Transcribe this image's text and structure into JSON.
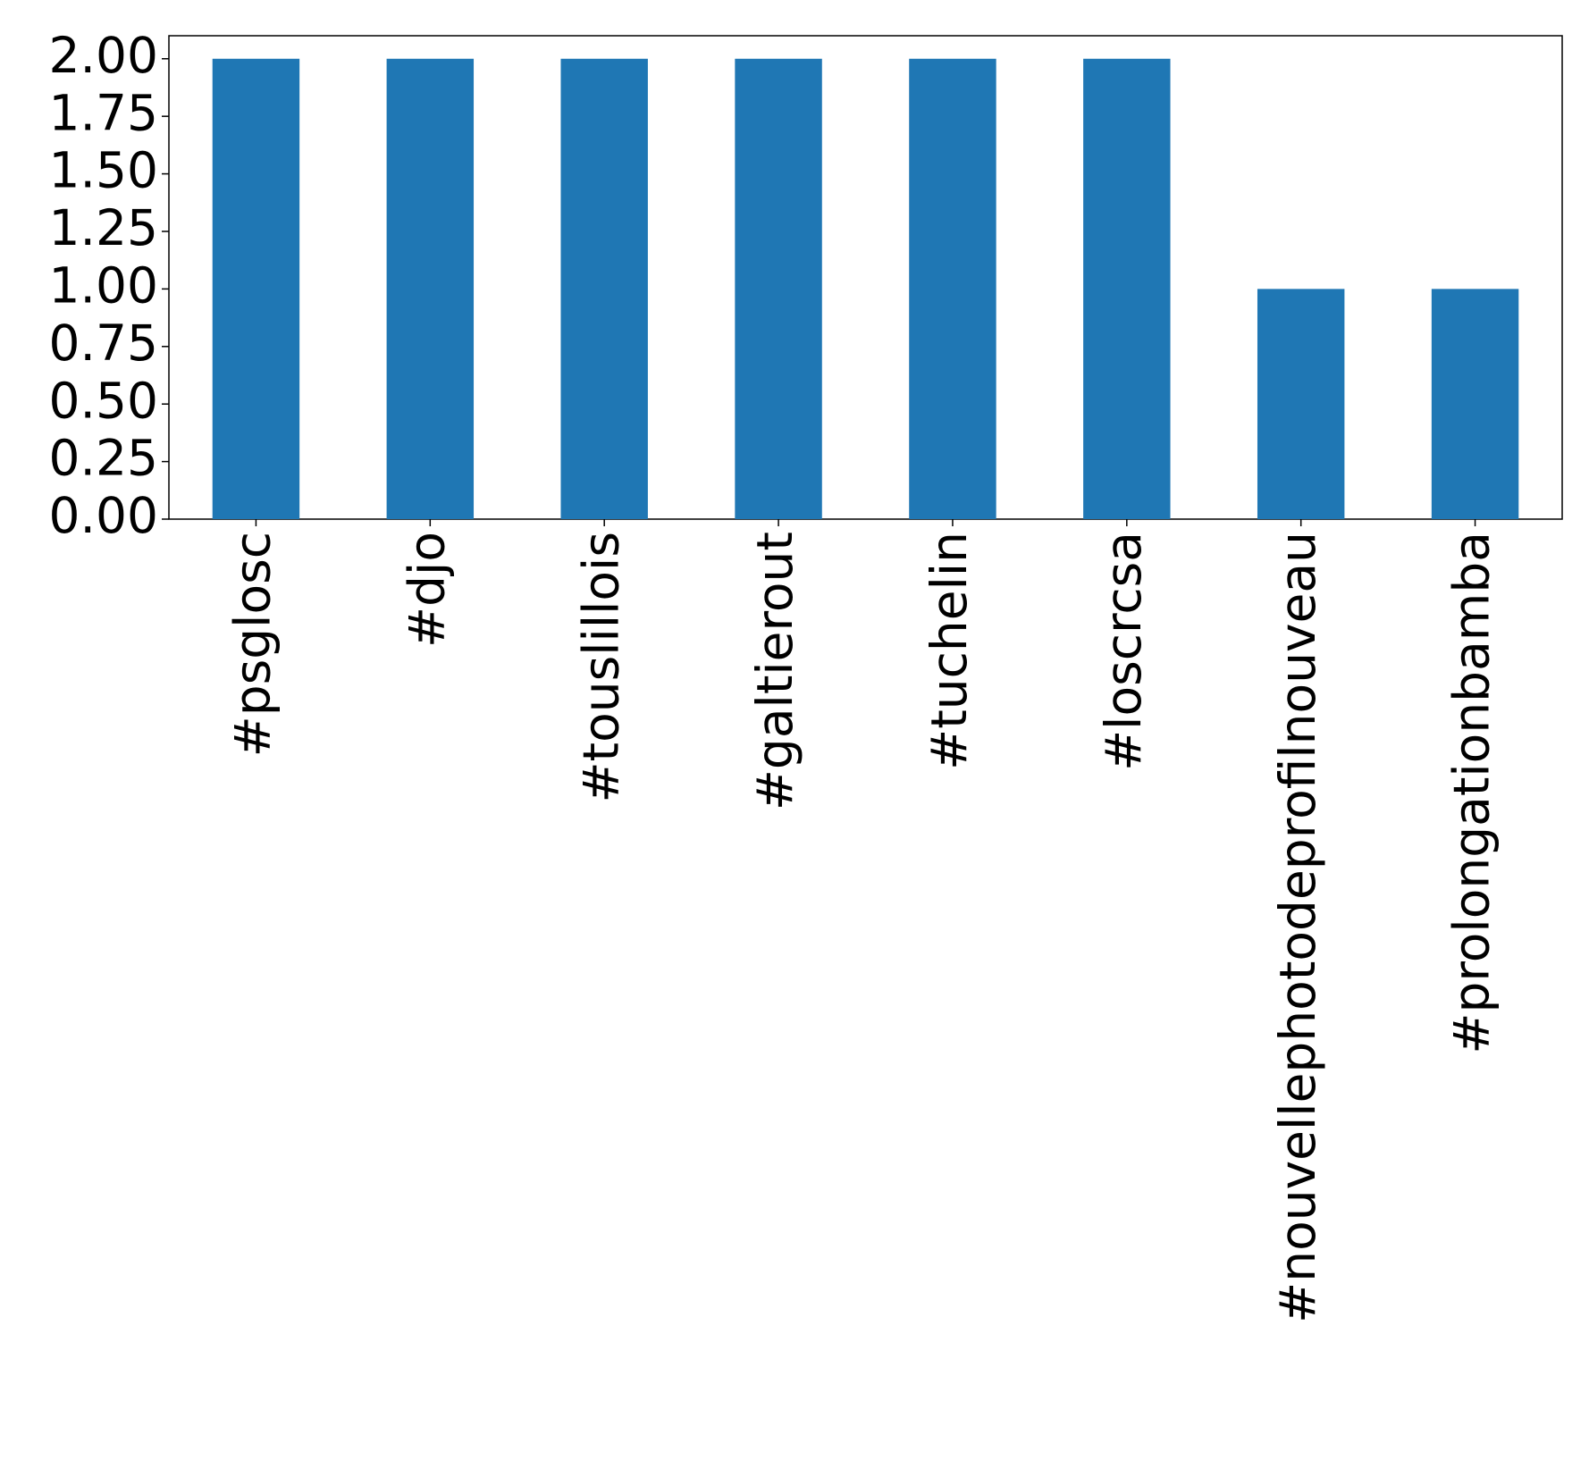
{
  "chart_data": {
    "type": "bar",
    "categories": [
      "#psglosc",
      "#djo",
      "#touslillois",
      "#galtierout",
      "#tuchelin",
      "#loscrcsa",
      "#nouvellephotodeprofilnouveau",
      "#prolongationbamba"
    ],
    "values": [
      2,
      2,
      2,
      2,
      2,
      2,
      1,
      1
    ],
    "color": "#1f77b4",
    "ylim": [
      0,
      2.1
    ],
    "yticks": [
      {
        "value": 0,
        "label": "0.00"
      },
      {
        "value": 0.25,
        "label": "0.25"
      },
      {
        "value": 0.5,
        "label": "0.50"
      },
      {
        "value": 0.75,
        "label": "0.75"
      },
      {
        "value": 1,
        "label": "1.00"
      },
      {
        "value": 1.25,
        "label": "1.25"
      },
      {
        "value": 1.5,
        "label": "1.50"
      },
      {
        "value": 1.75,
        "label": "1.75"
      },
      {
        "value": 2,
        "label": "2.00"
      }
    ],
    "grid": false
  }
}
